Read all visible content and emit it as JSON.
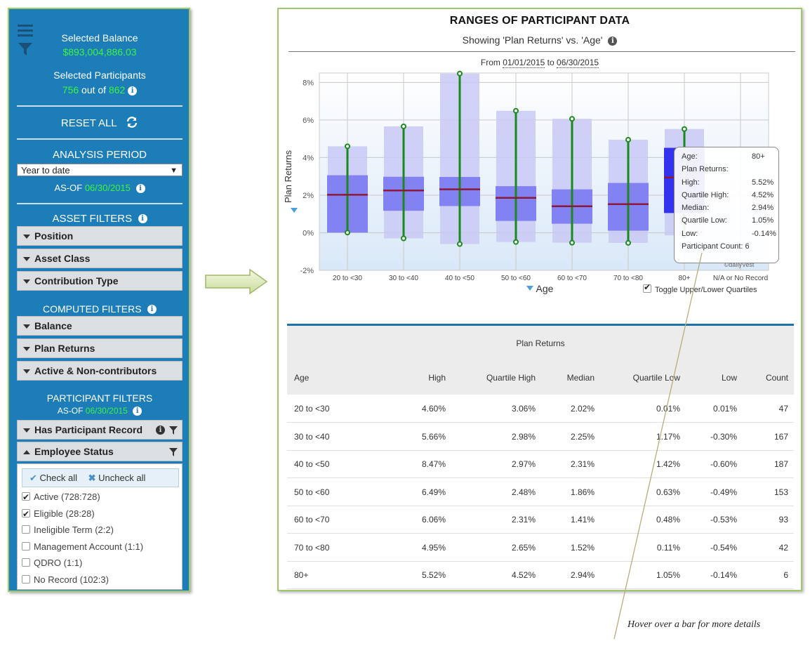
{
  "sidebar": {
    "selected_balance_label": "Selected Balance",
    "selected_balance_value": "$893,004,886.03",
    "selected_participants_label": "Selected Participants",
    "participants_selected": "756",
    "participants_out_of": "out of",
    "participants_total": "862",
    "reset_label": "RESET ALL",
    "analysis_period_title": "ANALYSIS PERIOD",
    "analysis_period_value": "Year to date",
    "as_of_label": "AS-OF",
    "as_of_date": "06/30/2015",
    "asset_filters_title": "ASSET FILTERS",
    "asset_filters": [
      "Position",
      "Asset Class",
      "Contribution Type"
    ],
    "computed_filters_title": "COMPUTED FILTERS",
    "computed_filters": [
      "Balance",
      "Plan Returns",
      "Active & Non-contributors"
    ],
    "participant_filters_title": "PARTICIPANT FILTERS",
    "participant_as_of_label": "AS-OF",
    "participant_as_of_date": "06/30/2015",
    "has_participant_record_label": "Has Participant Record",
    "employee_status_label": "Employee Status",
    "check_all_label": "Check all",
    "uncheck_all_label": "Uncheck all",
    "statuses": [
      {
        "label": "Active (728:728)",
        "checked": true
      },
      {
        "label": "Eligible (28:28)",
        "checked": true
      },
      {
        "label": "Ineligible Term (2:2)",
        "checked": false
      },
      {
        "label": "Management Account (1:1)",
        "checked": false
      },
      {
        "label": "QDRO (1:1)",
        "checked": false
      },
      {
        "label": "No Record (102:3)",
        "checked": false
      }
    ]
  },
  "main": {
    "title": "RANGES OF PARTICIPANT DATA",
    "subtitle": "Showing 'Plan Returns' vs. 'Age'",
    "date_from_label": "From",
    "date_from": "01/01/2015",
    "date_to_label": "to",
    "date_to": "06/30/2015",
    "toggle_label": "Toggle Upper/Lower Quartiles",
    "watermark": "©dailyVest"
  },
  "colors": {
    "sidebar_bg": "#1c7db8",
    "accent_green": "#3df53d",
    "range_bar": "#c9c9f6",
    "quartile_bar": "#8282f2",
    "highlight_bar": "#3333ee",
    "whisker": "#1a8a1a",
    "median_line": "#8b1a3a",
    "table_rule": "#1e73a8"
  },
  "chart_data": {
    "type": "box",
    "title": "RANGES OF PARTICIPANT DATA",
    "subtitle": "Showing 'Plan Returns' vs. 'Age'",
    "xlabel": "Age",
    "ylabel": "Plan Returns",
    "y_ticks": [
      "8%",
      "6%",
      "4%",
      "2%",
      "0%",
      "-2%"
    ],
    "ylim": [
      -2,
      8.5
    ],
    "grid": true,
    "categories": [
      "20 to <30",
      "30 to <40",
      "40 to <50",
      "50 to <60",
      "60 to <70",
      "70 to <80",
      "80+",
      "N/A or No Record"
    ],
    "high": [
      4.6,
      5.66,
      8.47,
      6.49,
      6.06,
      4.95,
      5.52,
      null
    ],
    "quartile_high": [
      3.06,
      2.98,
      2.97,
      2.48,
      2.31,
      2.65,
      4.52,
      null
    ],
    "median": [
      2.02,
      2.25,
      2.31,
      1.86,
      1.41,
      1.52,
      2.94,
      null
    ],
    "quartile_low": [
      0.01,
      1.17,
      1.42,
      0.63,
      0.48,
      0.11,
      1.05,
      null
    ],
    "low": [
      0.01,
      -0.3,
      -0.6,
      -0.49,
      -0.53,
      -0.54,
      -0.14,
      null
    ],
    "count": [
      47,
      167,
      187,
      153,
      93,
      42,
      6,
      null
    ],
    "highlighted": "80+",
    "tooltip": {
      "rows": [
        {
          "label": "Age:",
          "value": "80+"
        },
        {
          "label": "Plan Returns:",
          "value": ""
        },
        {
          "label": "High:",
          "value": "5.52%"
        },
        {
          "label": "Quartile High:",
          "value": "4.52%"
        },
        {
          "label": "Median:",
          "value": "2.94%"
        },
        {
          "label": "Quartile Low:",
          "value": "1.05%"
        },
        {
          "label": "Low:",
          "value": "-0.14%"
        },
        {
          "label": "Participant Count: 6",
          "value": ""
        }
      ]
    }
  },
  "table": {
    "group_header": "Plan Returns",
    "headers": [
      "Age",
      "High",
      "Quartile High",
      "Median",
      "Quartile Low",
      "Low",
      "Count"
    ],
    "rows": [
      [
        "20 to <30",
        "4.60%",
        "3.06%",
        "2.02%",
        "0.01%",
        "0.01%",
        "47"
      ],
      [
        "30 to <40",
        "5.66%",
        "2.98%",
        "2.25%",
        "1.17%",
        "-0.30%",
        "167"
      ],
      [
        "40 to <50",
        "8.47%",
        "2.97%",
        "2.31%",
        "1.42%",
        "-0.60%",
        "187"
      ],
      [
        "50 to <60",
        "6.49%",
        "2.48%",
        "1.86%",
        "0.63%",
        "-0.49%",
        "153"
      ],
      [
        "60 to <70",
        "6.06%",
        "2.31%",
        "1.41%",
        "0.48%",
        "-0.53%",
        "93"
      ],
      [
        "70 to <80",
        "4.95%",
        "2.65%",
        "1.52%",
        "0.11%",
        "-0.54%",
        "42"
      ],
      [
        "80+",
        "5.52%",
        "4.52%",
        "2.94%",
        "1.05%",
        "-0.14%",
        "6"
      ]
    ]
  },
  "callout": {
    "text": "Hover over a bar for more details"
  }
}
